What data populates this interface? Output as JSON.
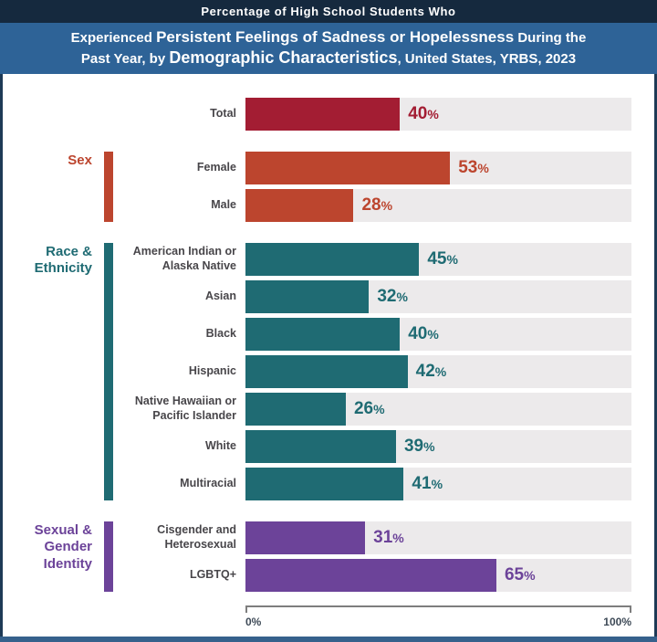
{
  "header": {
    "kicker": "Percentage of High School Students Who",
    "line1_pre": "Experienced ",
    "line1_bold": "Persistent Feelings of Sadness or Hopelessness",
    "line1_post": " During the",
    "line2_pre": "Past Year, by ",
    "line2_bold": "Demographic Characteristics",
    "line2_post": ", United States, YRBS, 2023"
  },
  "chart_data": {
    "type": "bar",
    "orientation": "horizontal",
    "title": "Percentage of High School Students Who Experienced Persistent Feelings of Sadness or Hopelessness During the Past Year, by Demographic Characteristics, United States, YRBS, 2023",
    "unit": "%",
    "xlim": [
      0,
      100
    ],
    "axis_labels": [
      "0%",
      "100%"
    ],
    "track_color": "#ECEAEB",
    "grid": false,
    "legend": false,
    "groups": [
      {
        "name": "",
        "color": "#A31D33",
        "rows": [
          {
            "label": "Total",
            "value": 40
          }
        ]
      },
      {
        "name": "Sex",
        "color": "#BC452E",
        "rows": [
          {
            "label": "Female",
            "value": 53
          },
          {
            "label": "Male",
            "value": 28
          }
        ]
      },
      {
        "name": "Race &\nEthnicity",
        "color": "#1F6B73",
        "rows": [
          {
            "label": "American Indian or Alaska Native",
            "value": 45
          },
          {
            "label": "Asian",
            "value": 32
          },
          {
            "label": "Black",
            "value": 40
          },
          {
            "label": "Hispanic",
            "value": 42
          },
          {
            "label": "Native Hawaiian or Pacific Islander",
            "value": 26
          },
          {
            "label": "White",
            "value": 39
          },
          {
            "label": "Multiracial",
            "value": 41
          }
        ]
      },
      {
        "name": "Sexual &\nGender\nIdentity",
        "color": "#6C4399",
        "rows": [
          {
            "label": "Cisgender and Heterosexual",
            "value": 31
          },
          {
            "label": "LGBTQ+",
            "value": 65
          }
        ]
      }
    ]
  }
}
